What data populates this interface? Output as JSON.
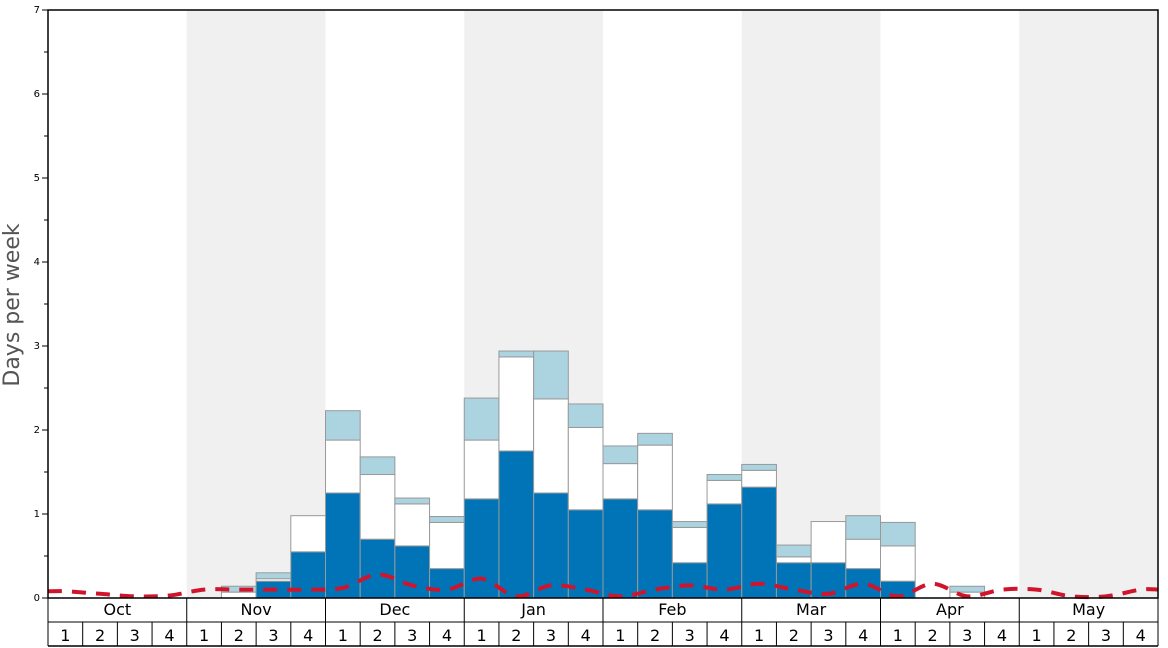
{
  "chart_data": {
    "type": "bar",
    "title": "",
    "xlabel": "",
    "ylabel": "Days per week",
    "ylim": [
      0,
      7
    ],
    "y_major_ticks": [
      "0",
      "1",
      "2",
      "3",
      "4",
      "5",
      "6",
      "7"
    ],
    "months": [
      "Oct",
      "Nov",
      "Dec",
      "Jan",
      "Feb",
      "Mar",
      "Apr",
      "May"
    ],
    "week_labels": [
      "1",
      "2",
      "3",
      "4"
    ],
    "stacked": true,
    "colors": {
      "series_1": "#0074b7",
      "series_2": "#ffffff",
      "series_3": "#abd3e0",
      "line": "#d0142c",
      "shade": "#f0f0f0",
      "bar_border": "#999999"
    },
    "series": [
      {
        "values": [
          0,
          0,
          0,
          0,
          0,
          0,
          0.2,
          0.55,
          1.25,
          0.7,
          0.62,
          0.35,
          1.18,
          1.75,
          1.25,
          1.05,
          1.18,
          1.05,
          0.42,
          1.12,
          1.32,
          0.42,
          0.42,
          0.35,
          0.2,
          0,
          0,
          0,
          0,
          0,
          0,
          0
        ]
      },
      {
        "values": [
          0,
          0,
          0,
          0,
          0,
          0.07,
          0.03,
          0.43,
          0.63,
          0.77,
          0.5,
          0.55,
          0.7,
          1.12,
          1.12,
          0.98,
          0.42,
          0.77,
          0.42,
          0.28,
          0.2,
          0.07,
          0.49,
          0.35,
          0.42,
          0,
          0.07,
          0,
          0,
          0,
          0,
          0
        ]
      },
      {
        "values": [
          0,
          0,
          0,
          0,
          0,
          0.07,
          0.07,
          0,
          0.35,
          0.21,
          0.07,
          0.07,
          0.5,
          0.07,
          0.57,
          0.28,
          0.21,
          0.14,
          0.07,
          0.07,
          0.07,
          0.14,
          0,
          0.28,
          0.28,
          0,
          0.07,
          0,
          0,
          0,
          0,
          0
        ]
      }
    ],
    "line": {
      "style": "dashed",
      "values": [
        0.08,
        0.05,
        0.02,
        0.03,
        0.1,
        0.1,
        0.1,
        0.1,
        0.12,
        0.28,
        0.15,
        0.1,
        0.23,
        0.02,
        0.15,
        0.1,
        0.02,
        0.1,
        0.15,
        0.1,
        0.17,
        0.1,
        0.05,
        0.17,
        0.02,
        0.17,
        0.02,
        0.1,
        0.1,
        0.02,
        0.02,
        0.1
      ]
    },
    "shaded_months": [
      "Nov",
      "Jan",
      "Mar",
      "May"
    ],
    "grid": false
  }
}
